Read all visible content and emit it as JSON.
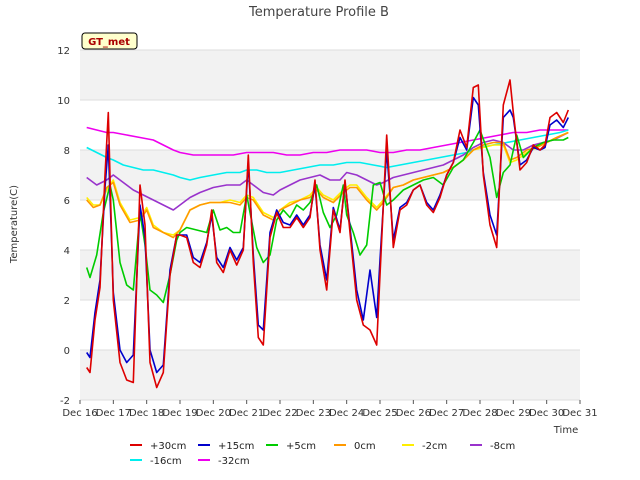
{
  "chart_data": {
    "type": "line",
    "title": "Temperature Profile B",
    "xlabel": "Time",
    "ylabel": "Temperature(C)",
    "badge": "GT_met",
    "xlim": [
      16,
      31
    ],
    "ylim": [
      -2,
      12
    ],
    "x_ticks": [
      16,
      17,
      18,
      19,
      20,
      21,
      22,
      23,
      24,
      25,
      26,
      27,
      28,
      29,
      30,
      31
    ],
    "x_tick_labels": [
      "Dec 16",
      "Dec 17",
      "Dec 18",
      "Dec 19",
      "Dec 20",
      "Dec 21",
      "Dec 22",
      "Dec 23",
      "Dec 24",
      "Dec 25",
      "Dec 26",
      "Dec 27",
      "Dec 28",
      "Dec 29",
      "Dec 30",
      "Dec 31"
    ],
    "y_ticks": [
      -2,
      0,
      2,
      4,
      6,
      8,
      10,
      12
    ],
    "y_tick_labels": [
      "-2",
      "0",
      "2",
      "4",
      "6",
      "8",
      "10",
      "12"
    ],
    "band_color": "#f2f2f2",
    "series": [
      {
        "name": "+30cm",
        "color": "#dd0000",
        "x": [
          16.2,
          16.3,
          16.45,
          16.6,
          16.75,
          16.85,
          17.0,
          17.2,
          17.4,
          17.6,
          17.8,
          17.95,
          18.1,
          18.3,
          18.5,
          18.7,
          18.9,
          19.0,
          19.2,
          19.4,
          19.6,
          19.8,
          19.95,
          20.1,
          20.3,
          20.5,
          20.7,
          20.9,
          21.05,
          21.2,
          21.35,
          21.5,
          21.7,
          21.9,
          22.1,
          22.3,
          22.5,
          22.7,
          22.9,
          23.05,
          23.2,
          23.4,
          23.6,
          23.8,
          23.95,
          24.1,
          24.3,
          24.5,
          24.7,
          24.9,
          25.0,
          25.2,
          25.4,
          25.6,
          25.8,
          26.0,
          26.2,
          26.4,
          26.6,
          26.8,
          27.0,
          27.2,
          27.4,
          27.6,
          27.8,
          27.95,
          28.1,
          28.3,
          28.5,
          28.7,
          28.9,
          29.0,
          29.2,
          29.4,
          29.6,
          29.8,
          29.95,
          30.1,
          30.3,
          30.5,
          30.65
        ],
        "values": [
          -0.7,
          -0.9,
          1.2,
          2.5,
          7.0,
          9.5,
          2.0,
          -0.5,
          -1.2,
          -1.3,
          6.6,
          5.0,
          -0.5,
          -1.5,
          -0.9,
          3.0,
          4.6,
          4.6,
          4.5,
          3.5,
          3.3,
          4.2,
          5.6,
          3.5,
          3.1,
          4.0,
          3.4,
          4.0,
          7.8,
          3.5,
          0.5,
          0.2,
          4.5,
          5.5,
          4.9,
          4.9,
          5.3,
          4.9,
          5.3,
          6.8,
          4.0,
          2.4,
          5.6,
          4.7,
          6.8,
          4.7,
          2.0,
          1.0,
          0.8,
          0.2,
          3.0,
          8.6,
          4.1,
          5.6,
          5.8,
          6.4,
          6.6,
          5.8,
          5.5,
          6.1,
          7.0,
          7.5,
          8.8,
          8.1,
          10.5,
          10.6,
          7.0,
          5.0,
          4.1,
          9.8,
          10.8,
          9.5,
          7.2,
          7.5,
          8.2,
          8.0,
          8.2,
          9.3,
          9.5,
          9.1,
          9.6
        ]
      },
      {
        "name": "+15cm",
        "color": "#0000cc",
        "x": [
          16.2,
          16.3,
          16.45,
          16.6,
          16.75,
          16.85,
          17.0,
          17.2,
          17.4,
          17.6,
          17.8,
          17.95,
          18.1,
          18.3,
          18.5,
          18.7,
          18.9,
          19.0,
          19.2,
          19.4,
          19.6,
          19.8,
          19.95,
          20.1,
          20.3,
          20.5,
          20.7,
          20.9,
          21.05,
          21.2,
          21.35,
          21.5,
          21.7,
          21.9,
          22.1,
          22.3,
          22.5,
          22.7,
          22.9,
          23.05,
          23.2,
          23.4,
          23.6,
          23.8,
          23.95,
          24.1,
          24.3,
          24.5,
          24.7,
          24.9,
          25.0,
          25.2,
          25.4,
          25.6,
          25.8,
          26.0,
          26.2,
          26.4,
          26.6,
          26.8,
          27.0,
          27.2,
          27.4,
          27.6,
          27.8,
          27.95,
          28.1,
          28.3,
          28.5,
          28.7,
          28.9,
          29.0,
          29.2,
          29.4,
          29.6,
          29.8,
          29.95,
          30.1,
          30.3,
          30.5,
          30.65
        ],
        "values": [
          -0.1,
          -0.3,
          1.5,
          2.8,
          6.5,
          8.2,
          2.3,
          0.0,
          -0.5,
          -0.2,
          5.8,
          4.5,
          0.0,
          -0.9,
          -0.6,
          3.2,
          4.6,
          4.6,
          4.6,
          3.7,
          3.5,
          4.3,
          5.4,
          3.7,
          3.3,
          4.1,
          3.6,
          4.1,
          7.5,
          3.8,
          1.0,
          0.8,
          4.7,
          5.6,
          5.1,
          5.0,
          5.4,
          5.0,
          5.4,
          6.6,
          4.2,
          2.8,
          5.7,
          4.8,
          6.7,
          4.9,
          2.4,
          1.2,
          3.2,
          1.3,
          3.6,
          8.0,
          4.4,
          5.7,
          5.9,
          6.4,
          6.6,
          5.9,
          5.6,
          6.2,
          7.0,
          7.5,
          8.5,
          8.0,
          10.1,
          9.8,
          7.1,
          5.4,
          4.6,
          9.3,
          9.6,
          9.3,
          7.4,
          7.6,
          8.1,
          8.0,
          8.1,
          9.0,
          9.2,
          8.9,
          9.3
        ]
      },
      {
        "name": "+5cm",
        "color": "#00cc00",
        "x": [
          16.2,
          16.3,
          16.5,
          16.7,
          16.9,
          17.0,
          17.2,
          17.4,
          17.6,
          17.8,
          17.95,
          18.1,
          18.3,
          18.5,
          18.7,
          18.9,
          19.0,
          19.2,
          19.5,
          19.8,
          20.0,
          20.2,
          20.4,
          20.6,
          20.8,
          21.0,
          21.1,
          21.3,
          21.5,
          21.7,
          21.9,
          22.1,
          22.3,
          22.5,
          22.7,
          22.9,
          23.1,
          23.3,
          23.5,
          23.7,
          23.9,
          24.0,
          24.2,
          24.4,
          24.6,
          24.8,
          25.0,
          25.2,
          25.4,
          25.7,
          26.0,
          26.3,
          26.6,
          26.9,
          27.2,
          27.5,
          27.8,
          28.0,
          28.3,
          28.5,
          28.7,
          28.9,
          29.1,
          29.3,
          29.6,
          29.9,
          30.2,
          30.5,
          30.65
        ],
        "values": [
          3.3,
          2.9,
          3.8,
          5.5,
          6.6,
          6.0,
          3.5,
          2.6,
          2.4,
          5.5,
          4.2,
          2.4,
          2.2,
          1.9,
          3.0,
          4.4,
          4.7,
          4.9,
          4.8,
          4.7,
          5.6,
          4.8,
          4.9,
          4.7,
          4.7,
          6.2,
          5.5,
          4.1,
          3.5,
          3.8,
          5.2,
          5.6,
          5.3,
          5.8,
          5.6,
          5.9,
          6.6,
          5.5,
          4.9,
          5.4,
          6.6,
          5.4,
          4.7,
          3.8,
          4.2,
          6.6,
          6.7,
          5.8,
          6.0,
          6.4,
          6.6,
          6.8,
          6.9,
          6.6,
          7.3,
          7.6,
          8.3,
          8.8,
          7.7,
          6.1,
          7.1,
          7.4,
          8.6,
          7.7,
          8.1,
          8.3,
          8.4,
          8.4,
          8.5
        ]
      },
      {
        "name": "0cm",
        "color": "#ff9900",
        "x": [
          16.2,
          16.4,
          16.6,
          16.8,
          17.0,
          17.2,
          17.5,
          17.8,
          18.0,
          18.2,
          18.5,
          18.8,
          19.0,
          19.3,
          19.6,
          19.9,
          20.2,
          20.5,
          20.8,
          21.0,
          21.2,
          21.5,
          21.8,
          22.0,
          22.3,
          22.6,
          22.9,
          23.1,
          23.3,
          23.6,
          23.9,
          24.1,
          24.3,
          24.6,
          24.9,
          25.1,
          25.4,
          25.7,
          26.0,
          26.3,
          26.6,
          26.9,
          27.2,
          27.5,
          27.8,
          28.1,
          28.4,
          28.7,
          28.9,
          29.1,
          29.4,
          29.7,
          30.0,
          30.3,
          30.65
        ],
        "values": [
          6.0,
          5.7,
          5.8,
          6.5,
          6.7,
          5.8,
          5.1,
          5.2,
          5.6,
          4.9,
          4.7,
          4.5,
          4.8,
          5.6,
          5.8,
          5.9,
          5.9,
          5.9,
          5.8,
          6.1,
          6.0,
          5.4,
          5.2,
          5.6,
          5.8,
          6.0,
          6.1,
          6.4,
          6.1,
          5.9,
          6.3,
          6.5,
          6.5,
          6.0,
          5.6,
          5.9,
          6.5,
          6.6,
          6.8,
          6.9,
          7.0,
          7.1,
          7.3,
          7.6,
          8.0,
          8.2,
          8.3,
          8.3,
          7.6,
          7.7,
          8.0,
          8.1,
          8.3,
          8.5,
          8.7
        ]
      },
      {
        "name": "-2cm",
        "color": "#ffee00",
        "x": [
          16.2,
          16.4,
          16.6,
          16.8,
          17.0,
          17.2,
          17.5,
          17.8,
          18.0,
          18.2,
          18.5,
          18.8,
          19.0,
          19.3,
          19.6,
          19.9,
          20.2,
          20.5,
          20.8,
          21.0,
          21.2,
          21.5,
          21.8,
          22.0,
          22.3,
          22.6,
          22.9,
          23.1,
          23.3,
          23.6,
          23.9,
          24.1,
          24.3,
          24.6,
          24.9,
          25.1,
          25.4,
          25.7,
          26.0,
          26.3,
          26.6,
          26.9,
          27.2,
          27.5,
          27.8,
          28.1,
          28.4,
          28.7,
          28.9,
          29.1,
          29.4,
          29.7,
          30.0,
          30.3,
          30.65
        ],
        "values": [
          6.1,
          5.8,
          5.8,
          6.4,
          6.8,
          5.9,
          5.2,
          5.3,
          5.7,
          5.0,
          4.7,
          4.6,
          4.8,
          5.6,
          5.8,
          5.9,
          5.9,
          6.0,
          5.9,
          6.2,
          6.1,
          5.5,
          5.3,
          5.6,
          5.9,
          6.0,
          6.2,
          6.5,
          6.2,
          6.0,
          6.4,
          6.6,
          6.6,
          6.1,
          5.7,
          6.0,
          6.5,
          6.6,
          6.8,
          6.9,
          7.0,
          7.1,
          7.3,
          7.6,
          8.0,
          8.1,
          8.2,
          8.2,
          7.5,
          7.6,
          7.9,
          8.1,
          8.3,
          8.5,
          8.7
        ]
      },
      {
        "name": "-8cm",
        "color": "#9933cc",
        "x": [
          16.2,
          16.5,
          16.8,
          17.0,
          17.3,
          17.6,
          17.9,
          18.2,
          18.5,
          18.8,
          19.0,
          19.3,
          19.6,
          20.0,
          20.4,
          20.8,
          21.0,
          21.2,
          21.5,
          21.8,
          22.0,
          22.3,
          22.6,
          22.9,
          23.2,
          23.5,
          23.8,
          24.0,
          24.3,
          24.6,
          24.9,
          25.1,
          25.4,
          25.7,
          26.0,
          26.3,
          26.6,
          26.9,
          27.2,
          27.5,
          27.8,
          28.1,
          28.4,
          28.7,
          29.0,
          29.3,
          29.6,
          29.9,
          30.2,
          30.5,
          30.65
        ],
        "values": [
          6.9,
          6.6,
          6.8,
          7.0,
          6.7,
          6.4,
          6.2,
          6.0,
          5.8,
          5.6,
          5.8,
          6.1,
          6.3,
          6.5,
          6.6,
          6.6,
          6.8,
          6.6,
          6.3,
          6.2,
          6.4,
          6.6,
          6.8,
          6.9,
          7.0,
          6.8,
          6.8,
          7.1,
          7.0,
          6.8,
          6.6,
          6.7,
          6.9,
          7.0,
          7.1,
          7.2,
          7.3,
          7.4,
          7.6,
          7.8,
          8.1,
          8.3,
          8.4,
          8.3,
          8.0,
          8.0,
          8.2,
          8.3,
          8.4,
          8.6,
          8.7
        ]
      },
      {
        "name": "-16cm",
        "color": "#00eeee",
        "x": [
          16.2,
          16.5,
          16.8,
          17.0,
          17.3,
          17.6,
          17.9,
          18.2,
          18.5,
          18.8,
          19.0,
          19.3,
          19.6,
          20.0,
          20.4,
          20.8,
          21.0,
          21.3,
          21.6,
          22.0,
          22.4,
          22.8,
          23.2,
          23.6,
          24.0,
          24.4,
          24.8,
          25.2,
          25.6,
          26.0,
          26.4,
          26.8,
          27.2,
          27.6,
          28.0,
          28.4,
          28.8,
          29.2,
          29.6,
          30.0,
          30.4,
          30.65
        ],
        "values": [
          8.1,
          7.9,
          7.7,
          7.6,
          7.4,
          7.3,
          7.2,
          7.2,
          7.1,
          7.0,
          6.9,
          6.8,
          6.9,
          7.0,
          7.1,
          7.1,
          7.2,
          7.2,
          7.1,
          7.1,
          7.2,
          7.3,
          7.4,
          7.4,
          7.5,
          7.5,
          7.4,
          7.3,
          7.4,
          7.5,
          7.6,
          7.7,
          7.8,
          7.9,
          8.1,
          8.2,
          8.3,
          8.4,
          8.5,
          8.6,
          8.7,
          8.8
        ]
      },
      {
        "name": "-32cm",
        "color": "#ee00ee",
        "x": [
          16.2,
          16.5,
          16.8,
          17.0,
          17.4,
          17.8,
          18.2,
          18.5,
          18.8,
          19.0,
          19.4,
          19.8,
          20.2,
          20.6,
          21.0,
          21.4,
          21.8,
          22.2,
          22.6,
          23.0,
          23.4,
          23.8,
          24.2,
          24.6,
          25.0,
          25.4,
          25.8,
          26.2,
          26.6,
          27.0,
          27.4,
          27.8,
          28.2,
          28.6,
          29.0,
          29.4,
          29.8,
          30.2,
          30.65
        ],
        "values": [
          8.9,
          8.8,
          8.7,
          8.7,
          8.6,
          8.5,
          8.4,
          8.2,
          8.0,
          7.9,
          7.8,
          7.8,
          7.8,
          7.8,
          7.9,
          7.9,
          7.9,
          7.8,
          7.8,
          7.9,
          7.9,
          8.0,
          8.0,
          8.0,
          7.9,
          7.9,
          8.0,
          8.0,
          8.1,
          8.2,
          8.3,
          8.4,
          8.5,
          8.6,
          8.7,
          8.7,
          8.8,
          8.8,
          8.8
        ]
      }
    ]
  }
}
